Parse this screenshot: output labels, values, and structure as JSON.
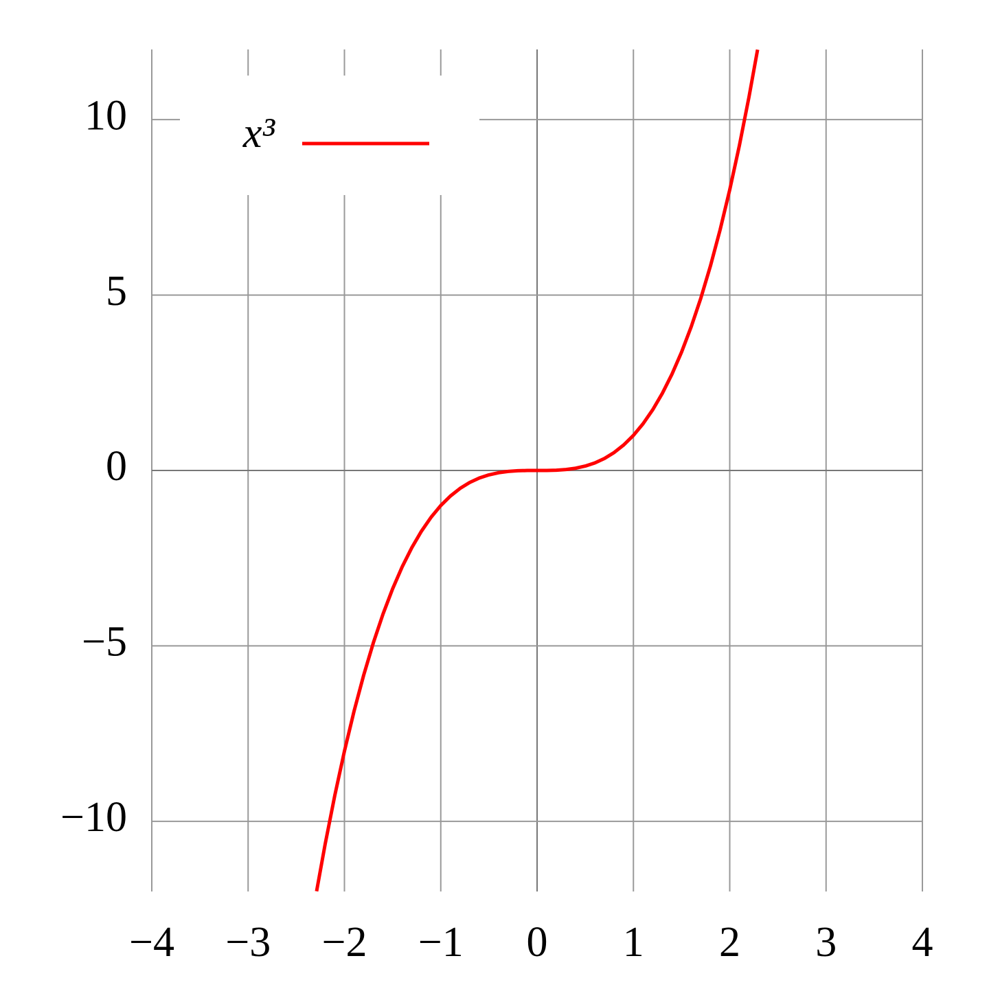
{
  "chart_data": {
    "type": "line",
    "x": [
      -2.289,
      -2.2,
      -2.1,
      -2.0,
      -1.9,
      -1.8,
      -1.7,
      -1.6,
      -1.5,
      -1.4,
      -1.3,
      -1.2,
      -1.1,
      -1.0,
      -0.9,
      -0.8,
      -0.7,
      -0.6,
      -0.5,
      -0.4,
      -0.3,
      -0.2,
      -0.1,
      0,
      0.1,
      0.2,
      0.3,
      0.4,
      0.5,
      0.6,
      0.7,
      0.8,
      0.9,
      1.0,
      1.1,
      1.2,
      1.3,
      1.4,
      1.5,
      1.6,
      1.7,
      1.8,
      1.9,
      2.0,
      2.1,
      2.2,
      2.289
    ],
    "series": [
      {
        "name": "x³",
        "color": "#ff0000",
        "values": [
          -11.993,
          -10.648,
          -9.261,
          -8,
          -6.859,
          -5.832,
          -4.913,
          -4.096,
          -3.375,
          -2.744,
          -2.197,
          -1.728,
          -1.331,
          -1,
          -0.729,
          -0.512,
          -0.343,
          -0.216,
          -0.125,
          -0.064,
          -0.027,
          -0.008,
          -0.001,
          0,
          0.001,
          0.008,
          0.027,
          0.064,
          0.125,
          0.216,
          0.343,
          0.512,
          0.729,
          1,
          1.331,
          1.728,
          2.197,
          2.744,
          3.375,
          4.096,
          4.913,
          5.832,
          6.859,
          8,
          9.261,
          10.648,
          11.993
        ]
      }
    ],
    "xlim": [
      -4,
      4
    ],
    "ylim": [
      -12,
      12
    ],
    "xticks": [
      {
        "value": -4,
        "label": "−4"
      },
      {
        "value": -3,
        "label": "−3"
      },
      {
        "value": -2,
        "label": "−2"
      },
      {
        "value": -1,
        "label": "−1"
      },
      0,
      1,
      2,
      3,
      4
    ],
    "yticks": [
      {
        "value": -10,
        "label": "−10"
      },
      {
        "value": -5,
        "label": "−5"
      },
      0,
      5,
      10
    ],
    "grid": true,
    "legend": "upper-left"
  }
}
